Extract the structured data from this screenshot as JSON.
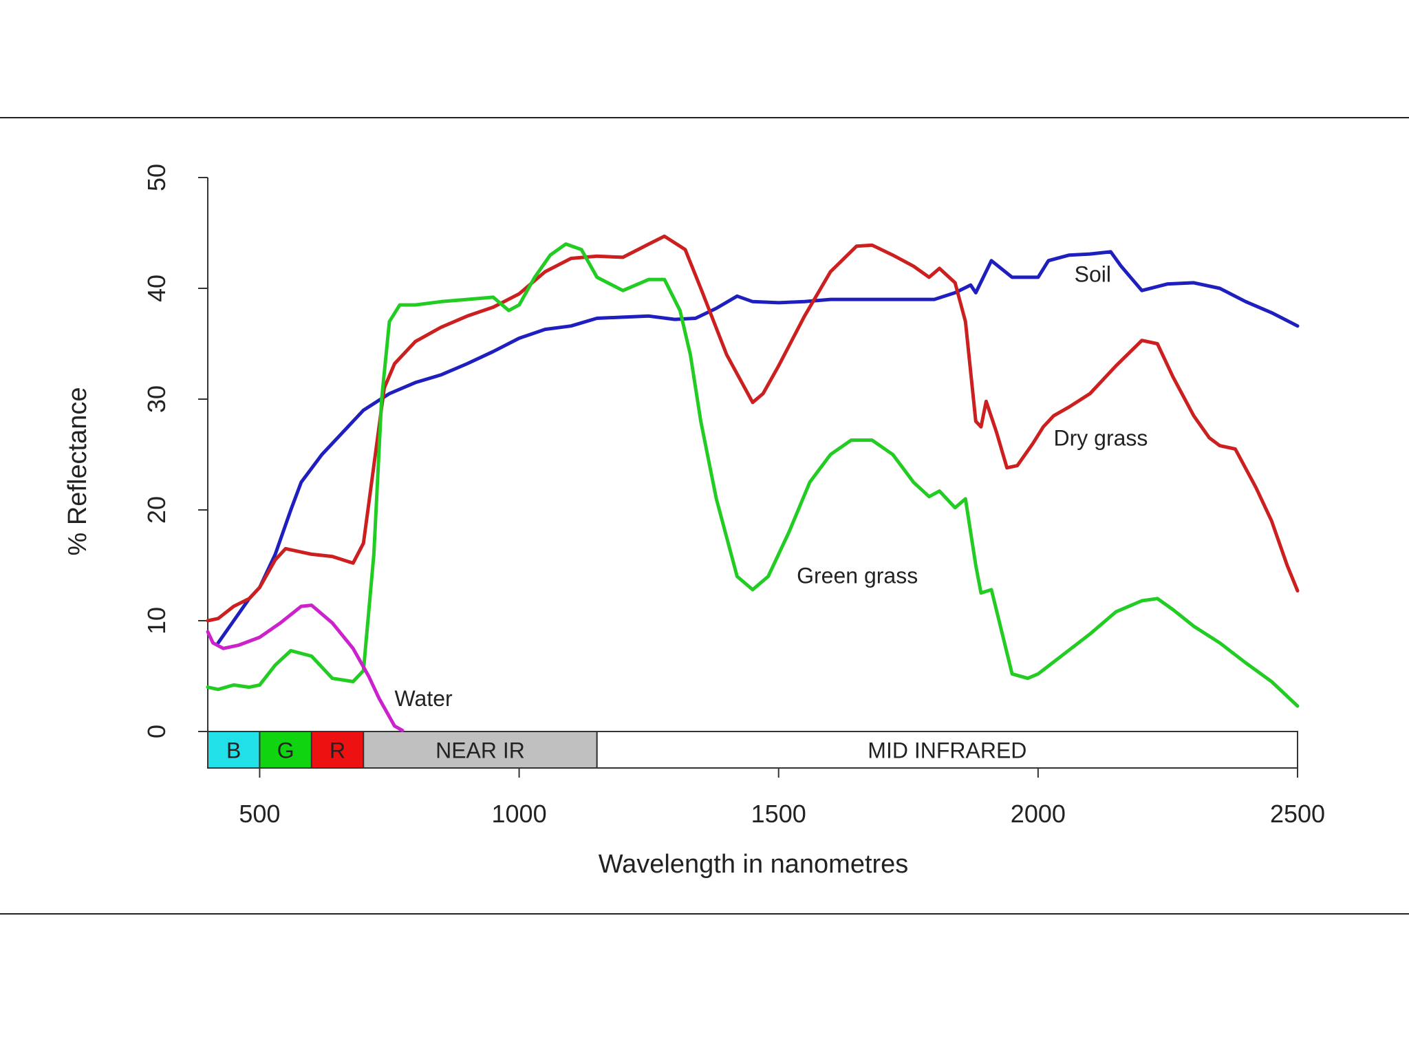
{
  "chart_data": {
    "type": "line",
    "xlabel": "Wavelength in nanometres",
    "ylabel": "% Reflectance",
    "xlim": [
      400,
      2500
    ],
    "ylim": [
      0,
      50
    ],
    "x_ticks": [
      500,
      1000,
      1500,
      2000,
      2500
    ],
    "y_ticks": [
      0,
      10,
      20,
      30,
      40,
      50
    ],
    "grid": false,
    "bands": [
      {
        "label": "B",
        "start": 400,
        "end": 500,
        "color": "#22e0e8"
      },
      {
        "label": "G",
        "start": 500,
        "end": 600,
        "color": "#11d411"
      },
      {
        "label": "R",
        "start": 600,
        "end": 700,
        "color": "#ee1111"
      },
      {
        "label": "NEAR IR",
        "start": 700,
        "end": 1150,
        "color": "#c0c0c0"
      },
      {
        "label": "MID INFRARED",
        "start": 1150,
        "end": 2500,
        "color": "#ffffff"
      }
    ],
    "series": [
      {
        "name": "Soil",
        "color": "#1f1fbf",
        "label_at": [
          2070,
          40.6
        ],
        "points": [
          [
            420,
            8
          ],
          [
            450,
            10
          ],
          [
            480,
            12
          ],
          [
            500,
            13
          ],
          [
            530,
            16
          ],
          [
            560,
            20
          ],
          [
            580,
            22.5
          ],
          [
            620,
            25
          ],
          [
            660,
            27
          ],
          [
            700,
            29
          ],
          [
            750,
            30.5
          ],
          [
            800,
            31.5
          ],
          [
            850,
            32.2
          ],
          [
            900,
            33.2
          ],
          [
            950,
            34.3
          ],
          [
            1000,
            35.5
          ],
          [
            1050,
            36.3
          ],
          [
            1100,
            36.6
          ],
          [
            1150,
            37.3
          ],
          [
            1200,
            37.4
          ],
          [
            1250,
            37.5
          ],
          [
            1300,
            37.2
          ],
          [
            1340,
            37.3
          ],
          [
            1380,
            38.2
          ],
          [
            1420,
            39.3
          ],
          [
            1450,
            38.8
          ],
          [
            1500,
            38.7
          ],
          [
            1550,
            38.8
          ],
          [
            1600,
            39
          ],
          [
            1650,
            39
          ],
          [
            1700,
            39
          ],
          [
            1750,
            39
          ],
          [
            1800,
            39
          ],
          [
            1840,
            39.6
          ],
          [
            1870,
            40.3
          ],
          [
            1880,
            39.6
          ],
          [
            1910,
            42.5
          ],
          [
            1950,
            41
          ],
          [
            2000,
            41
          ],
          [
            2020,
            42.5
          ],
          [
            2060,
            43
          ],
          [
            2100,
            43.1
          ],
          [
            2140,
            43.3
          ],
          [
            2160,
            42
          ],
          [
            2200,
            39.8
          ],
          [
            2250,
            40.4
          ],
          [
            2300,
            40.5
          ],
          [
            2350,
            40
          ],
          [
            2400,
            38.8
          ],
          [
            2450,
            37.8
          ],
          [
            2500,
            36.6
          ]
        ]
      },
      {
        "name": "Dry grass",
        "color": "#cc1f1f",
        "label_at": [
          2030,
          25.8
        ],
        "points": [
          [
            400,
            10
          ],
          [
            420,
            10.2
          ],
          [
            450,
            11.3
          ],
          [
            480,
            12
          ],
          [
            500,
            13
          ],
          [
            530,
            15.5
          ],
          [
            550,
            16.5
          ],
          [
            600,
            16
          ],
          [
            640,
            15.8
          ],
          [
            680,
            15.2
          ],
          [
            700,
            17
          ],
          [
            720,
            24
          ],
          [
            740,
            31
          ],
          [
            760,
            33.2
          ],
          [
            800,
            35.2
          ],
          [
            850,
            36.5
          ],
          [
            900,
            37.5
          ],
          [
            950,
            38.3
          ],
          [
            1000,
            39.5
          ],
          [
            1050,
            41.5
          ],
          [
            1100,
            42.7
          ],
          [
            1150,
            42.9
          ],
          [
            1200,
            42.8
          ],
          [
            1250,
            44
          ],
          [
            1280,
            44.7
          ],
          [
            1320,
            43.5
          ],
          [
            1350,
            40
          ],
          [
            1400,
            34
          ],
          [
            1450,
            29.7
          ],
          [
            1470,
            30.5
          ],
          [
            1500,
            33
          ],
          [
            1550,
            37.5
          ],
          [
            1600,
            41.5
          ],
          [
            1650,
            43.8
          ],
          [
            1680,
            43.9
          ],
          [
            1720,
            43
          ],
          [
            1760,
            42
          ],
          [
            1790,
            41
          ],
          [
            1810,
            41.8
          ],
          [
            1840,
            40.5
          ],
          [
            1860,
            37
          ],
          [
            1880,
            28
          ],
          [
            1890,
            27.5
          ],
          [
            1900,
            29.8
          ],
          [
            1920,
            27
          ],
          [
            1940,
            23.8
          ],
          [
            1960,
            24
          ],
          [
            1990,
            26
          ],
          [
            2010,
            27.5
          ],
          [
            2030,
            28.5
          ],
          [
            2060,
            29.3
          ],
          [
            2100,
            30.5
          ],
          [
            2150,
            33
          ],
          [
            2200,
            35.3
          ],
          [
            2230,
            35
          ],
          [
            2260,
            32
          ],
          [
            2300,
            28.5
          ],
          [
            2330,
            26.5
          ],
          [
            2350,
            25.8
          ],
          [
            2380,
            25.5
          ],
          [
            2420,
            22
          ],
          [
            2450,
            19
          ],
          [
            2480,
            15
          ],
          [
            2500,
            12.7
          ]
        ]
      },
      {
        "name": "Green grass",
        "color": "#22cc22",
        "label_at": [
          1535,
          13.4
        ],
        "points": [
          [
            400,
            4
          ],
          [
            420,
            3.8
          ],
          [
            450,
            4.2
          ],
          [
            480,
            4
          ],
          [
            500,
            4.2
          ],
          [
            530,
            6
          ],
          [
            560,
            7.3
          ],
          [
            600,
            6.8
          ],
          [
            640,
            4.8
          ],
          [
            680,
            4.5
          ],
          [
            700,
            5.5
          ],
          [
            720,
            16
          ],
          [
            735,
            30
          ],
          [
            750,
            37
          ],
          [
            770,
            38.5
          ],
          [
            800,
            38.5
          ],
          [
            850,
            38.8
          ],
          [
            900,
            39
          ],
          [
            950,
            39.2
          ],
          [
            980,
            38
          ],
          [
            1000,
            38.5
          ],
          [
            1030,
            41
          ],
          [
            1060,
            43
          ],
          [
            1090,
            44
          ],
          [
            1120,
            43.5
          ],
          [
            1150,
            41
          ],
          [
            1200,
            39.8
          ],
          [
            1250,
            40.8
          ],
          [
            1280,
            40.8
          ],
          [
            1310,
            38
          ],
          [
            1330,
            34
          ],
          [
            1350,
            28
          ],
          [
            1380,
            21
          ],
          [
            1420,
            14
          ],
          [
            1450,
            12.8
          ],
          [
            1480,
            14
          ],
          [
            1520,
            18
          ],
          [
            1560,
            22.5
          ],
          [
            1600,
            25
          ],
          [
            1640,
            26.3
          ],
          [
            1680,
            26.3
          ],
          [
            1720,
            25
          ],
          [
            1760,
            22.5
          ],
          [
            1790,
            21.2
          ],
          [
            1810,
            21.7
          ],
          [
            1840,
            20.2
          ],
          [
            1860,
            21
          ],
          [
            1880,
            15
          ],
          [
            1890,
            12.5
          ],
          [
            1910,
            12.8
          ],
          [
            1930,
            9
          ],
          [
            1950,
            5.2
          ],
          [
            1980,
            4.8
          ],
          [
            2000,
            5.2
          ],
          [
            2050,
            7
          ],
          [
            2100,
            8.8
          ],
          [
            2150,
            10.8
          ],
          [
            2200,
            11.8
          ],
          [
            2230,
            12
          ],
          [
            2260,
            11
          ],
          [
            2300,
            9.5
          ],
          [
            2350,
            8
          ],
          [
            2400,
            6.2
          ],
          [
            2450,
            4.5
          ],
          [
            2500,
            2.3
          ]
        ]
      },
      {
        "name": "Water",
        "color": "#cc22cc",
        "label_at": [
          760,
          2.3
        ],
        "points": [
          [
            400,
            9
          ],
          [
            410,
            8
          ],
          [
            430,
            7.5
          ],
          [
            460,
            7.8
          ],
          [
            500,
            8.5
          ],
          [
            540,
            9.8
          ],
          [
            580,
            11.3
          ],
          [
            600,
            11.4
          ],
          [
            640,
            9.8
          ],
          [
            680,
            7.5
          ],
          [
            710,
            5
          ],
          [
            730,
            3
          ],
          [
            760,
            0.5
          ],
          [
            775,
            0.1
          ]
        ]
      }
    ]
  }
}
